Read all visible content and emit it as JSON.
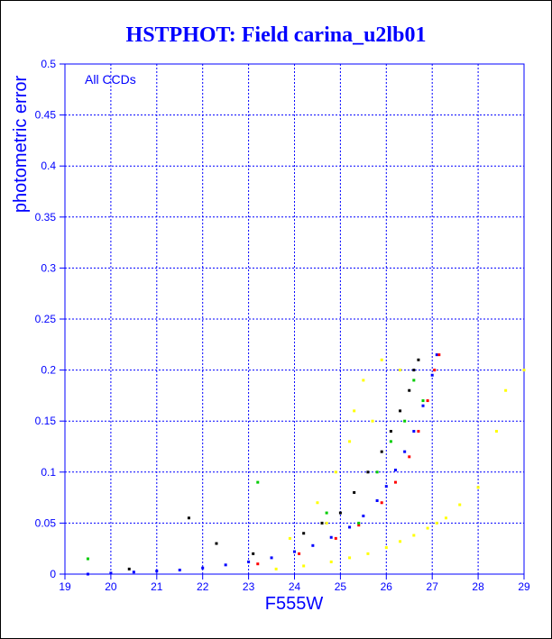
{
  "colors": {
    "title": "#0000ff",
    "axis": "#0000ff",
    "grid": "#0000ff",
    "main_sequence": "#0000ff",
    "faint_edge": "#ff0000",
    "outliers": "#000000",
    "green_points": "#00cc00",
    "yellow_points": "#ffff00"
  },
  "chart_data": {
    "type": "scatter",
    "title": "HSTPHOT: Field carina_u2lb01",
    "xlabel": "F555W",
    "ylabel": "photometric error",
    "annotation": "All CCDs",
    "xlim": [
      19,
      29
    ],
    "ylim": [
      0,
      0.5
    ],
    "grid": true,
    "x_ticks": [
      "19",
      "20",
      "21",
      "22",
      "23",
      "24",
      "25",
      "26",
      "27",
      "28",
      "29"
    ],
    "y_ticks": [
      "0",
      "0.05",
      "0.1",
      "0.15",
      "0.2",
      "0.25",
      "0.3",
      "0.35",
      "0.4",
      "0.45",
      "0.5"
    ],
    "series": [
      {
        "color": "#0000ff",
        "points": [
          [
            19.5,
            0.0
          ],
          [
            20.0,
            0.001
          ],
          [
            20.5,
            0.002
          ],
          [
            21.0,
            0.003
          ],
          [
            21.5,
            0.004
          ],
          [
            22.0,
            0.006
          ],
          [
            22.5,
            0.009
          ],
          [
            23.0,
            0.012
          ],
          [
            23.5,
            0.016
          ],
          [
            24.0,
            0.022
          ],
          [
            24.4,
            0.028
          ],
          [
            24.8,
            0.036
          ],
          [
            25.2,
            0.046
          ],
          [
            25.5,
            0.057
          ],
          [
            25.8,
            0.072
          ],
          [
            26.0,
            0.086
          ],
          [
            26.2,
            0.102
          ],
          [
            26.4,
            0.12
          ],
          [
            26.6,
            0.14
          ],
          [
            26.8,
            0.165
          ],
          [
            27.0,
            0.195
          ],
          [
            27.1,
            0.215
          ]
        ]
      },
      {
        "color": "#ff0000",
        "points": [
          [
            23.2,
            0.01
          ],
          [
            24.1,
            0.02
          ],
          [
            24.9,
            0.035
          ],
          [
            25.4,
            0.048
          ],
          [
            25.9,
            0.07
          ],
          [
            26.2,
            0.09
          ],
          [
            26.5,
            0.115
          ],
          [
            26.7,
            0.14
          ],
          [
            26.9,
            0.17
          ],
          [
            27.05,
            0.2
          ],
          [
            27.15,
            0.215
          ]
        ]
      },
      {
        "color": "#000000",
        "points": [
          [
            20.4,
            0.005
          ],
          [
            21.7,
            0.055
          ],
          [
            22.3,
            0.03
          ],
          [
            23.1,
            0.02
          ],
          [
            24.2,
            0.04
          ],
          [
            24.6,
            0.05
          ],
          [
            25.0,
            0.06
          ],
          [
            25.3,
            0.08
          ],
          [
            25.6,
            0.1
          ],
          [
            25.9,
            0.12
          ],
          [
            26.1,
            0.14
          ],
          [
            26.3,
            0.16
          ],
          [
            26.5,
            0.18
          ],
          [
            26.6,
            0.2
          ],
          [
            26.7,
            0.21
          ]
        ]
      },
      {
        "color": "#00cc00",
        "points": [
          [
            19.5,
            0.015
          ],
          [
            23.2,
            0.09
          ],
          [
            24.7,
            0.06
          ],
          [
            25.4,
            0.05
          ],
          [
            25.8,
            0.1
          ],
          [
            26.1,
            0.13
          ],
          [
            26.4,
            0.15
          ],
          [
            26.6,
            0.19
          ],
          [
            26.8,
            0.17
          ]
        ]
      },
      {
        "color": "#ffff00",
        "points": [
          [
            23.6,
            0.005
          ],
          [
            24.2,
            0.008
          ],
          [
            24.8,
            0.012
          ],
          [
            25.2,
            0.016
          ],
          [
            25.6,
            0.02
          ],
          [
            26.0,
            0.026
          ],
          [
            26.3,
            0.032
          ],
          [
            26.6,
            0.038
          ],
          [
            26.9,
            0.045
          ],
          [
            27.1,
            0.05
          ],
          [
            27.3,
            0.055
          ],
          [
            27.6,
            0.068
          ],
          [
            28.0,
            0.085
          ],
          [
            28.4,
            0.14
          ],
          [
            28.6,
            0.18
          ],
          [
            29.0,
            0.2
          ],
          [
            24.5,
            0.07
          ],
          [
            24.9,
            0.1
          ],
          [
            25.2,
            0.13
          ],
          [
            25.3,
            0.16
          ],
          [
            25.5,
            0.19
          ],
          [
            25.9,
            0.21
          ],
          [
            26.3,
            0.2
          ],
          [
            25.7,
            0.15
          ],
          [
            24.7,
            0.05
          ],
          [
            23.9,
            0.035
          ]
        ]
      }
    ]
  }
}
